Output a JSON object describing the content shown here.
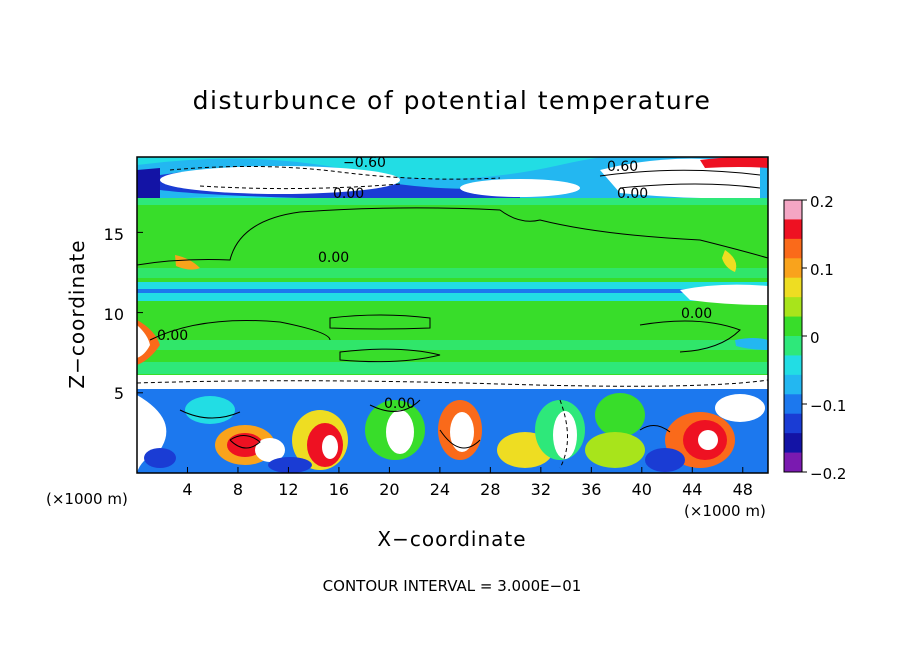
{
  "chart_data": {
    "type": "heatmap",
    "title": "disturbunce of potential temperature",
    "xlabel": "X−coordinate",
    "ylabel": "Z−coordinate",
    "x_unit_label": "(×1000 m)",
    "x_ticks": [
      "4",
      "8",
      "12",
      "16",
      "20",
      "24",
      "28",
      "32",
      "36",
      "40",
      "44",
      "48"
    ],
    "y_ticks": [
      "5",
      "10",
      "15"
    ],
    "xlim": [
      0,
      50
    ],
    "ylim": [
      0,
      19.7
    ],
    "contour_labels": [
      "−0.60",
      "0.60",
      "0.00",
      "0.00",
      "0.00",
      "0.00",
      "0.00",
      "0.00"
    ],
    "colorbar": {
      "range": [
        -0.2,
        0.2
      ],
      "tick_labels": [
        "0.2",
        "0.1",
        "0",
        "−0.1",
        "−0.2"
      ],
      "colors": [
        "#f4a6c4",
        "#ee1122",
        "#fa6a1a",
        "#f9a31c",
        "#eedd22",
        "#a8e41b",
        "#38dd2a",
        "#2ee87a",
        "#22dde4",
        "#23b7f1",
        "#1c78ee",
        "#1a3cd4",
        "#1313a5",
        "#7a1ab0"
      ]
    },
    "contour_interval": "CONTOUR INTERVAL = 3.000E−01"
  }
}
